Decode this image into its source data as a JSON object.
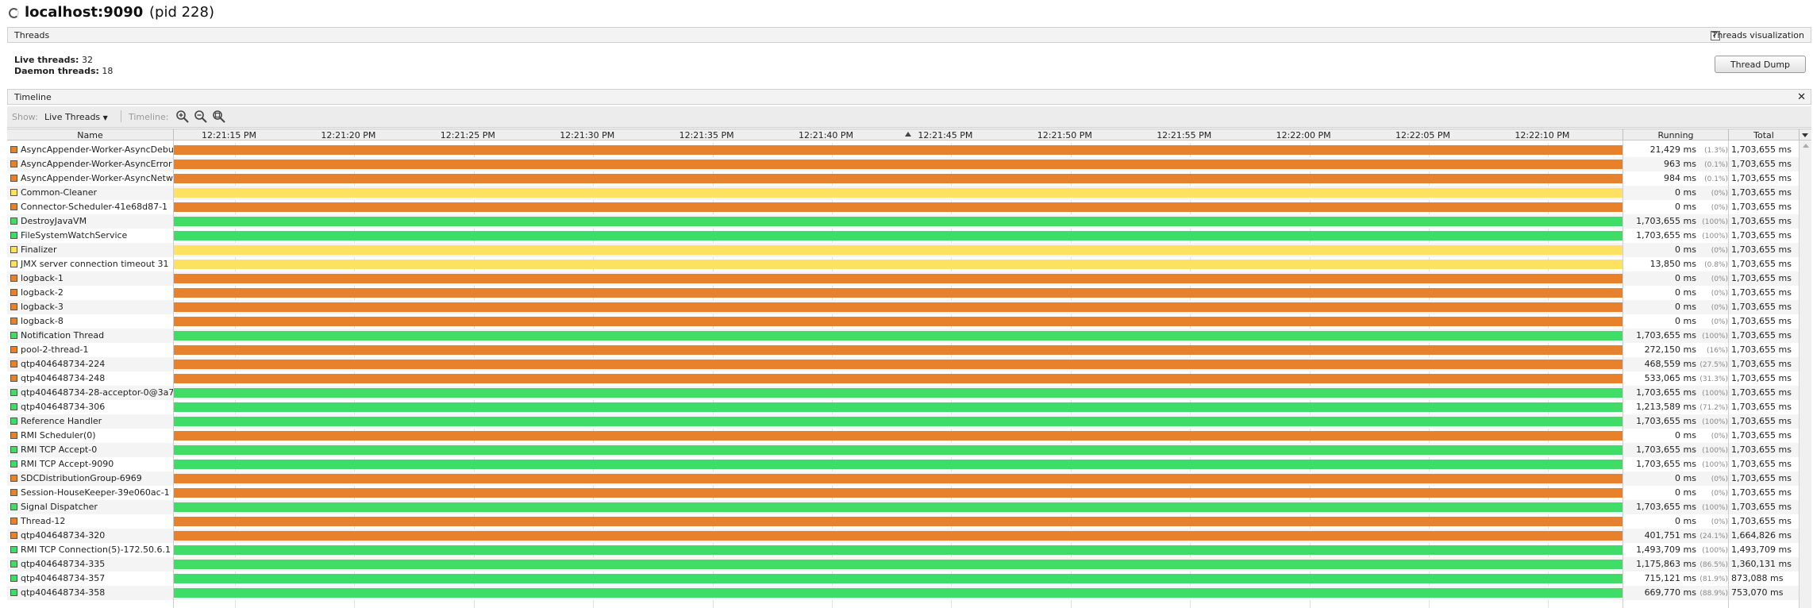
{
  "window": {
    "host": "localhost:9090",
    "pid": "(pid 228)",
    "spinner_icon": "loading-spinner-icon"
  },
  "threads_section": {
    "title": "Threads",
    "visualization_label": "Threads visualization",
    "visualization_checked": true,
    "live_threads_label": "Live threads:",
    "live_threads_value": "32",
    "daemon_threads_label": "Daemon threads:",
    "daemon_threads_value": "18",
    "thread_dump_button": "Thread Dump"
  },
  "timeline_section": {
    "title": "Timeline",
    "close_icon": "close-icon",
    "close_glyph": "✕"
  },
  "toolbar": {
    "show_label": "Show:",
    "show_value": "Live Threads",
    "timeline_label": "Timeline:",
    "zoom_icons": [
      "zoom-in-icon",
      "zoom-out-icon",
      "zoom-fit-icon"
    ]
  },
  "columns": {
    "name": "Name",
    "running": "Running",
    "total": "Total"
  },
  "time_ticks": [
    "12:21:15 PM",
    "12:21:20 PM",
    "12:21:25 PM",
    "12:21:30 PM",
    "12:21:35 PM",
    "12:21:40 PM",
    "12:21:45 PM",
    "12:21:50 PM",
    "12:21:55 PM",
    "12:22:00 PM",
    "12:22:05 PM",
    "12:22:10 PM"
  ],
  "state_colors": {
    "running": "#3fdc67",
    "parked": "#e8812c",
    "wait": "#fde261"
  },
  "threads": [
    {
      "name": "AsyncAppender-Worker-AsyncDebug",
      "state": "parked",
      "running": "21,429 ms",
      "pct": "(1.3%)",
      "total": "1,703,655 ms"
    },
    {
      "name": "AsyncAppender-Worker-AsyncError",
      "state": "parked",
      "running": "963 ms",
      "pct": "(0.1%)",
      "total": "1,703,655 ms"
    },
    {
      "name": "AsyncAppender-Worker-AsyncNetwork",
      "state": "parked",
      "running": "984 ms",
      "pct": "(0.1%)",
      "total": "1,703,655 ms"
    },
    {
      "name": "Common-Cleaner",
      "state": "wait",
      "running": "0 ms",
      "pct": "(0%)",
      "total": "1,703,655 ms"
    },
    {
      "name": "Connector-Scheduler-41e68d87-1",
      "state": "parked",
      "running": "0 ms",
      "pct": "(0%)",
      "total": "1,703,655 ms"
    },
    {
      "name": "DestroyJavaVM",
      "state": "running",
      "running": "1,703,655 ms",
      "pct": "(100%)",
      "total": "1,703,655 ms"
    },
    {
      "name": "FileSystemWatchService",
      "state": "running",
      "running": "1,703,655 ms",
      "pct": "(100%)",
      "total": "1,703,655 ms"
    },
    {
      "name": "Finalizer",
      "state": "wait",
      "running": "0 ms",
      "pct": "(0%)",
      "total": "1,703,655 ms"
    },
    {
      "name": "JMX server connection timeout 31",
      "state": "wait",
      "running": "13,850 ms",
      "pct": "(0.8%)",
      "total": "1,703,655 ms"
    },
    {
      "name": "logback-1",
      "state": "parked",
      "running": "0 ms",
      "pct": "(0%)",
      "total": "1,703,655 ms"
    },
    {
      "name": "logback-2",
      "state": "parked",
      "running": "0 ms",
      "pct": "(0%)",
      "total": "1,703,655 ms"
    },
    {
      "name": "logback-3",
      "state": "parked",
      "running": "0 ms",
      "pct": "(0%)",
      "total": "1,703,655 ms"
    },
    {
      "name": "logback-8",
      "state": "parked",
      "running": "0 ms",
      "pct": "(0%)",
      "total": "1,703,655 ms"
    },
    {
      "name": "Notification Thread",
      "state": "running",
      "running": "1,703,655 ms",
      "pct": "(100%)",
      "total": "1,703,655 ms"
    },
    {
      "name": "pool-2-thread-1",
      "state": "parked",
      "running": "272,150 ms",
      "pct": "(16%)",
      "total": "1,703,655 ms"
    },
    {
      "name": "qtp404648734-224",
      "state": "parked",
      "running": "468,559 ms",
      "pct": "(27.5%)",
      "total": "1,703,655 ms"
    },
    {
      "name": "qtp404648734-248",
      "state": "parked",
      "running": "533,065 ms",
      "pct": "(31.3%)",
      "total": "1,703,655 ms"
    },
    {
      "name": "qtp404648734-28-acceptor-0@3a7",
      "state": "running",
      "running": "1,703,655 ms",
      "pct": "(100%)",
      "total": "1,703,655 ms"
    },
    {
      "name": "qtp404648734-306",
      "state": "running",
      "running": "1,213,589 ms",
      "pct": "(71.2%)",
      "total": "1,703,655 ms"
    },
    {
      "name": "Reference Handler",
      "state": "running",
      "running": "1,703,655 ms",
      "pct": "(100%)",
      "total": "1,703,655 ms"
    },
    {
      "name": "RMI Scheduler(0)",
      "state": "parked",
      "running": "0 ms",
      "pct": "(0%)",
      "total": "1,703,655 ms"
    },
    {
      "name": "RMI TCP Accept-0",
      "state": "running",
      "running": "1,703,655 ms",
      "pct": "(100%)",
      "total": "1,703,655 ms"
    },
    {
      "name": "RMI TCP Accept-9090",
      "state": "running",
      "running": "1,703,655 ms",
      "pct": "(100%)",
      "total": "1,703,655 ms"
    },
    {
      "name": "SDCDistributionGroup-6969",
      "state": "parked",
      "running": "0 ms",
      "pct": "(0%)",
      "total": "1,703,655 ms"
    },
    {
      "name": "Session-HouseKeeper-39e060ac-1",
      "state": "parked",
      "running": "0 ms",
      "pct": "(0%)",
      "total": "1,703,655 ms"
    },
    {
      "name": "Signal Dispatcher",
      "state": "running",
      "running": "1,703,655 ms",
      "pct": "(100%)",
      "total": "1,703,655 ms"
    },
    {
      "name": "Thread-12",
      "state": "parked",
      "running": "0 ms",
      "pct": "(0%)",
      "total": "1,703,655 ms"
    },
    {
      "name": "qtp404648734-320",
      "state": "parked",
      "running": "401,751 ms",
      "pct": "(24.1%)",
      "total": "1,664,826 ms"
    },
    {
      "name": "RMI TCP Connection(5)-172.50.6.1",
      "state": "running",
      "running": "1,493,709 ms",
      "pct": "(100%)",
      "total": "1,493,709 ms"
    },
    {
      "name": "qtp404648734-335",
      "state": "running",
      "running": "1,175,863 ms",
      "pct": "(86.5%)",
      "total": "1,360,131 ms"
    },
    {
      "name": "qtp404648734-357",
      "state": "running",
      "running": "715,121 ms",
      "pct": "(81.9%)",
      "total": "873,088 ms"
    },
    {
      "name": "qtp404648734-358",
      "state": "running",
      "running": "669,770 ms",
      "pct": "(88.9%)",
      "total": "753,070 ms"
    }
  ]
}
